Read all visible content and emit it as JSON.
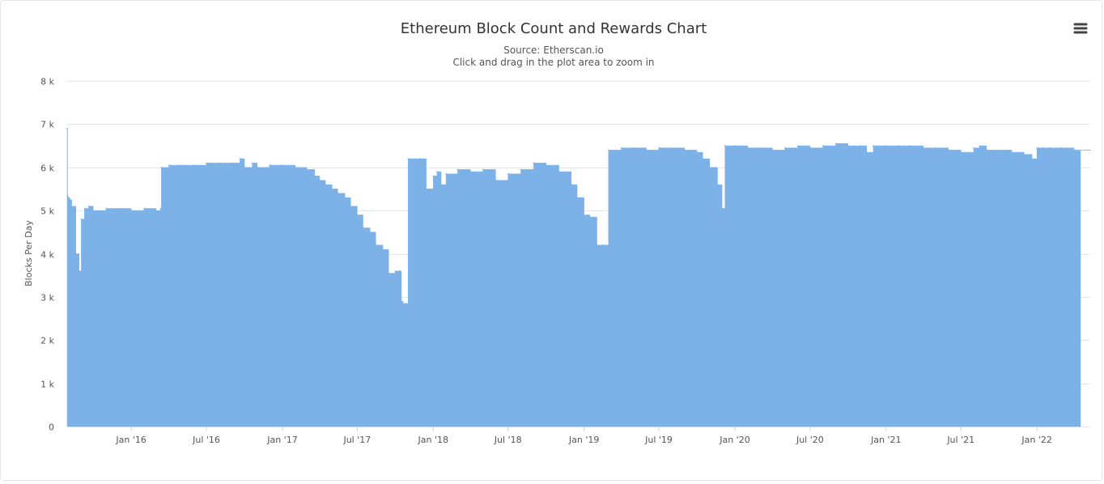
{
  "chart_data": {
    "type": "area",
    "title": "Ethereum Block Count and Rewards Chart",
    "subtitle_lines": [
      "Source: Etherscan.io",
      "Click and drag in the plot area to zoom in"
    ],
    "ylabel": "Blocks Per Day",
    "xlabel": "",
    "ylim": [
      0,
      8000
    ],
    "yticks": [
      0,
      1000,
      2000,
      3000,
      4000,
      5000,
      6000,
      7000,
      8000
    ],
    "ytick_labels": [
      "0",
      "1 k",
      "2 k",
      "3 k",
      "4 k",
      "5 k",
      "6 k",
      "7 k",
      "8 k"
    ],
    "xlim": [
      "2015-07-30",
      "2022-05-10"
    ],
    "xticks": [
      "2016-01-01",
      "2016-07-01",
      "2017-01-01",
      "2017-07-01",
      "2018-01-01",
      "2018-07-01",
      "2019-01-01",
      "2019-07-01",
      "2020-01-01",
      "2020-07-01",
      "2021-01-01",
      "2021-07-01",
      "2022-01-01"
    ],
    "xtick_labels": [
      "Jan '16",
      "Jul '16",
      "Jan '17",
      "Jul '17",
      "Jan '18",
      "Jul '18",
      "Jan '19",
      "Jul '19",
      "Jan '20",
      "Jul '20",
      "Jan '21",
      "Jul '21",
      "Jan '22"
    ],
    "grid": true,
    "color": "#7cb2e8",
    "series": [
      {
        "x": [
          "2015-07-30",
          "2015-07-31",
          "2015-08-01",
          "2015-08-05",
          "2015-08-10",
          "2015-08-20",
          "2015-08-28",
          "2015-09-02",
          "2015-09-10",
          "2015-09-20",
          "2015-10-01",
          "2015-11-01",
          "2015-12-01",
          "2016-01-01",
          "2016-02-01",
          "2016-03-01",
          "2016-03-12",
          "2016-03-14",
          "2016-04-01",
          "2016-05-01",
          "2016-06-01",
          "2016-07-01",
          "2016-08-01",
          "2016-09-01",
          "2016-09-20",
          "2016-10-01",
          "2016-10-20",
          "2016-11-01",
          "2016-12-01",
          "2017-01-01",
          "2017-02-01",
          "2017-03-01",
          "2017-03-20",
          "2017-04-01",
          "2017-04-15",
          "2017-05-01",
          "2017-05-15",
          "2017-06-01",
          "2017-06-15",
          "2017-07-01",
          "2017-07-15",
          "2017-08-01",
          "2017-08-15",
          "2017-09-01",
          "2017-09-15",
          "2017-10-01",
          "2017-10-10",
          "2017-10-16",
          "2017-10-20",
          "2017-11-01",
          "2017-12-01",
          "2017-12-15",
          "2018-01-01",
          "2018-01-10",
          "2018-01-20",
          "2018-02-01",
          "2018-03-01",
          "2018-04-01",
          "2018-05-01",
          "2018-06-01",
          "2018-07-01",
          "2018-08-01",
          "2018-09-01",
          "2018-10-01",
          "2018-11-01",
          "2018-12-01",
          "2018-12-15",
          "2019-01-01",
          "2019-01-15",
          "2019-02-01",
          "2019-02-15",
          "2019-03-01",
          "2019-04-01",
          "2019-05-01",
          "2019-06-01",
          "2019-07-01",
          "2019-08-01",
          "2019-09-01",
          "2019-10-01",
          "2019-10-15",
          "2019-11-01",
          "2019-11-20",
          "2019-12-01",
          "2019-12-08",
          "2020-01-01",
          "2020-02-01",
          "2020-03-01",
          "2020-04-01",
          "2020-05-01",
          "2020-06-01",
          "2020-07-01",
          "2020-08-01",
          "2020-09-01",
          "2020-10-01",
          "2020-11-01",
          "2020-11-15",
          "2020-12-01",
          "2021-01-01",
          "2021-02-01",
          "2021-03-01",
          "2021-04-01",
          "2021-05-01",
          "2021-06-01",
          "2021-07-01",
          "2021-08-01",
          "2021-08-15",
          "2021-09-01",
          "2021-10-01",
          "2021-11-01",
          "2021-12-01",
          "2021-12-20",
          "2022-01-01",
          "2022-01-15",
          "2022-02-01",
          "2022-03-01",
          "2022-04-01",
          "2022-05-01",
          "2022-05-10"
        ],
        "values": [
          6900,
          5350,
          5300,
          5250,
          5100,
          4000,
          3600,
          4800,
          5050,
          5100,
          5000,
          5050,
          5050,
          5000,
          5050,
          5000,
          5050,
          6000,
          6050,
          6050,
          6050,
          6100,
          6100,
          6100,
          6200,
          6000,
          6100,
          6000,
          6050,
          6050,
          6000,
          5950,
          5800,
          5700,
          5600,
          5500,
          5400,
          5300,
          5100,
          4900,
          4600,
          4500,
          4200,
          4100,
          3550,
          3600,
          3600,
          2900,
          2850,
          6200,
          6200,
          5500,
          5800,
          5900,
          5600,
          5850,
          5950,
          5900,
          5950,
          5700,
          5850,
          5950,
          6100,
          6050,
          5900,
          5600,
          5300,
          4900,
          4850,
          4200,
          4200,
          6400,
          6450,
          6450,
          6400,
          6450,
          6450,
          6400,
          6350,
          6200,
          6000,
          5600,
          5050,
          6500,
          6500,
          6450,
          6450,
          6400,
          6450,
          6500,
          6450,
          6500,
          6550,
          6500,
          6500,
          6350,
          6500,
          6500,
          6500,
          6500,
          6450,
          6450,
          6400,
          6350,
          6450,
          6500,
          6400,
          6400,
          6350,
          6300,
          6200,
          6450,
          6450,
          6450,
          6450,
          6400,
          6400,
          6400
        ]
      }
    ]
  }
}
